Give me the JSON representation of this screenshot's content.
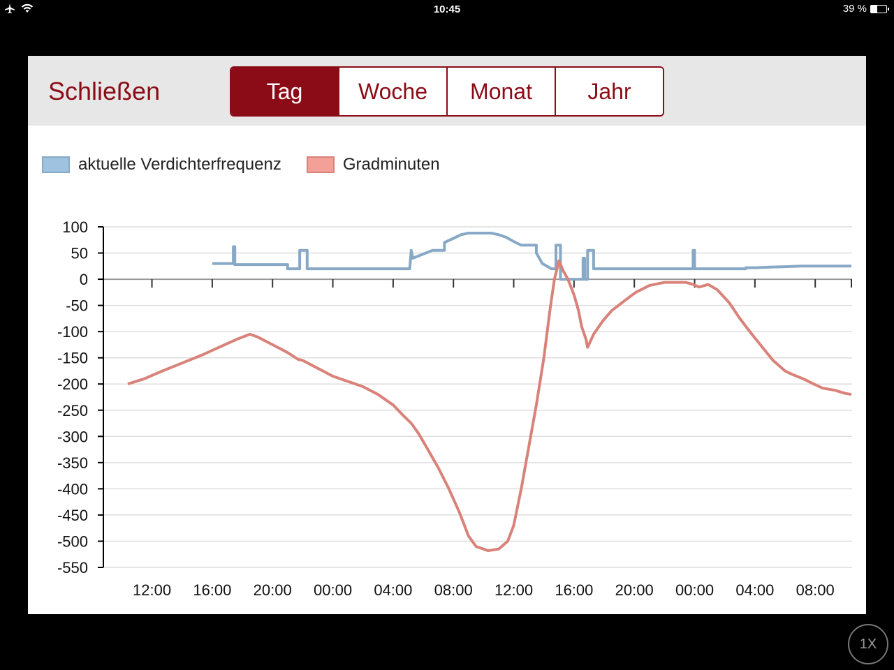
{
  "status_bar": {
    "time": "10:45",
    "battery": "39 %",
    "battery_level": 0.39
  },
  "header": {
    "close_label": "Schließen",
    "segments": [
      {
        "label": "Tag",
        "active": true
      },
      {
        "label": "Woche",
        "active": false
      },
      {
        "label": "Monat",
        "active": false
      },
      {
        "label": "Jahr",
        "active": false
      }
    ]
  },
  "colors": {
    "accent": "#8b0c16",
    "freq": "#88a9c6",
    "gradmin": "#d9827a"
  },
  "zoom_label": "1X",
  "chart_data": {
    "type": "line",
    "legend": [
      {
        "name": "aktuelle Verdichterfrequenz",
        "color": "#88a9c6",
        "fill": "#9fc2e0"
      },
      {
        "name": "Gradminuten",
        "color": "#d9827a",
        "fill": "#f3a198"
      }
    ],
    "ylim": [
      -550,
      100
    ],
    "yticks": [
      100,
      50,
      0,
      -50,
      -100,
      -150,
      -200,
      -250,
      -300,
      -350,
      -400,
      -450,
      -500,
      -550
    ],
    "x_unit": "hours",
    "xlim": [
      10.4,
      58.4
    ],
    "xticks": [
      {
        "x": 12,
        "label": "12:00"
      },
      {
        "x": 16,
        "label": "16:00"
      },
      {
        "x": 20,
        "label": "20:00"
      },
      {
        "x": 24,
        "label": "00:00"
      },
      {
        "x": 28,
        "label": "04:00"
      },
      {
        "x": 32,
        "label": "08:00"
      },
      {
        "x": 36,
        "label": "12:00"
      },
      {
        "x": 40,
        "label": "16:00"
      },
      {
        "x": 44,
        "label": "20:00"
      },
      {
        "x": 48,
        "label": "00:00"
      },
      {
        "x": 52,
        "label": "04:00"
      },
      {
        "x": 56,
        "label": "08:00"
      }
    ],
    "grid": true,
    "legend_position": "top-left",
    "series": [
      {
        "name": "aktuelle Verdichterfrequenz",
        "x": [
          16.0,
          17.4,
          17.4,
          17.5,
          17.5,
          17.6,
          17.6,
          21.0,
          21.0,
          21.8,
          21.8,
          22.3,
          22.3,
          28.9,
          29.1,
          29.2,
          29.2,
          29.3,
          29.3,
          30.6,
          30.6,
          31.4,
          31.4,
          32.0,
          32.5,
          33.0,
          33.5,
          34.0,
          34.5,
          35.0,
          35.5,
          36.0,
          36.5,
          37.0,
          37.5,
          37.5,
          37.9,
          38.5,
          38.8,
          38.8,
          39.1,
          39.1,
          40.6,
          40.6,
          40.7,
          40.7,
          40.9,
          40.9,
          41.3,
          41.3,
          47.9,
          47.9,
          48.0,
          48.0,
          48.3,
          48.3,
          51.4,
          51.4,
          52.0,
          53.0,
          54.0,
          55.0,
          56.0,
          57.0,
          58.4
        ],
        "y": [
          30,
          30,
          62,
          62,
          28,
          28,
          28,
          28,
          20,
          20,
          55,
          55,
          20,
          20,
          20,
          55,
          55,
          40,
          40,
          55,
          55,
          55,
          70,
          78,
          85,
          88,
          88,
          88,
          88,
          85,
          80,
          72,
          65,
          65,
          65,
          50,
          30,
          20,
          20,
          65,
          65,
          0,
          0,
          40,
          40,
          0,
          0,
          55,
          55,
          20,
          20,
          55,
          55,
          20,
          20,
          20,
          20,
          22,
          22,
          23,
          24,
          25,
          25,
          25,
          25
        ]
      },
      {
        "name": "Gradminuten",
        "x": [
          10.4,
          11.5,
          12.7,
          14.0,
          15.3,
          16.6,
          17.6,
          18.5,
          19.0,
          20.0,
          21.0,
          21.7,
          22.0,
          23.0,
          24.0,
          25.0,
          26.0,
          27.0,
          28.0,
          28.6,
          29.2,
          29.7,
          30.4,
          31.0,
          31.7,
          32.4,
          33.0,
          33.5,
          34.3,
          35.0,
          35.6,
          36.0,
          36.5,
          37.0,
          37.5,
          38.0,
          38.4,
          38.7,
          39.0,
          39.3,
          39.6,
          40.0,
          40.3,
          40.5,
          40.8,
          40.9,
          41.3,
          41.9,
          42.5,
          43.4,
          44.1,
          45.0,
          46.0,
          47.0,
          47.4,
          47.9,
          48.3,
          48.9,
          49.5,
          50.3,
          51.0,
          51.8,
          52.5,
          53.2,
          54.0,
          54.5,
          55.2,
          55.9,
          56.5,
          57.3,
          58.0,
          58.4
        ],
        "y": [
          -200,
          -190,
          -175,
          -160,
          -145,
          -128,
          -115,
          -105,
          -110,
          -125,
          -140,
          -153,
          -155,
          -170,
          -185,
          -195,
          -205,
          -220,
          -240,
          -258,
          -275,
          -295,
          -330,
          -360,
          -400,
          -445,
          -490,
          -510,
          -518,
          -515,
          -500,
          -470,
          -400,
          -320,
          -240,
          -150,
          -60,
          0,
          35,
          15,
          0,
          -30,
          -60,
          -90,
          -115,
          -130,
          -105,
          -80,
          -60,
          -40,
          -25,
          -12,
          -6,
          -6,
          -6,
          -10,
          -15,
          -10,
          -20,
          -45,
          -75,
          -105,
          -130,
          -155,
          -175,
          -182,
          -190,
          -200,
          -208,
          -212,
          -218,
          -220
        ]
      }
    ]
  }
}
